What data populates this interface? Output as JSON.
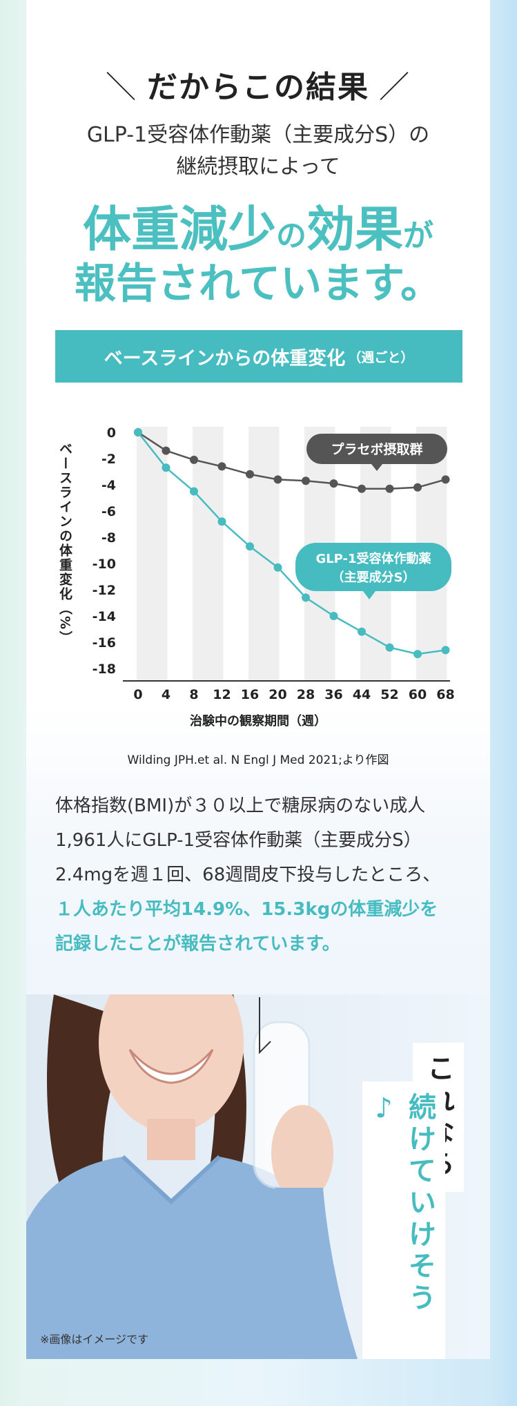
{
  "header": {
    "heading": "だからこの結果",
    "slash_left": "＼",
    "slash_right": "／",
    "sub1": "GLP-1受容体作動薬（主要成分S）の",
    "sub2": "継続摂取によって",
    "big1_a": "体重減少",
    "big1_b": "の",
    "big1_c": "効果",
    "big1_d": "が",
    "big2": "報告されています。"
  },
  "banner": {
    "main": "ベースラインからの体重変化",
    "paren": "（週ごと）"
  },
  "chart_data": {
    "type": "line",
    "ylabel": "ベースラインの体重変化（%）",
    "xlabel": "治験中の観察期間（週）",
    "x_ticks": [
      "0",
      "4",
      "8",
      "12",
      "16",
      "20",
      "28",
      "36",
      "44",
      "52",
      "60",
      "68"
    ],
    "y_ticks": [
      "0",
      "-2",
      "-4",
      "-6",
      "-8",
      "-10",
      "-12",
      "-14",
      "-16",
      "-18"
    ],
    "ylim": [
      -18,
      0
    ],
    "x": [
      0,
      4,
      8,
      12,
      16,
      20,
      28,
      36,
      44,
      52,
      60,
      68
    ],
    "series": [
      {
        "name": "プラセボ摂取群",
        "color": "#555555",
        "values": [
          0,
          -1.4,
          -2.1,
          -2.6,
          -3.2,
          -3.6,
          -3.7,
          -3.9,
          -4.3,
          -4.3,
          -4.2,
          -3.6
        ]
      },
      {
        "name": "GLP-1受容体作動薬（主要成分S）",
        "color": "#47bcc0",
        "values": [
          0,
          -2.7,
          -4.5,
          -6.8,
          -8.7,
          -10.3,
          -12.6,
          -14.0,
          -15.2,
          -16.4,
          -16.9,
          -16.6
        ]
      }
    ],
    "placebo_label": "プラセボ摂取群",
    "drug_label_1": "GLP-1受容体作動薬",
    "drug_label_2": "（主要成分S）",
    "grid": "vertical bands"
  },
  "citation": "Wilding JPH.et al. N Engl J Med 2021;より作図",
  "body": {
    "line1": "体格指数(BMI)が３０以上で糖尿病のない成人",
    "line2": "1,961人にGLP-1受容体作動薬（主要成分S）",
    "line3": "2.4mgを週１回、68週間皮下投与したところ、",
    "line4": "１人あたり平均14.9%、15.3kgの体重減少を",
    "line5": "記録したことが報告されています。"
  },
  "photo": {
    "bubble_1": "これなら",
    "bubble_2": "続けていけそう♪",
    "note": "※画像はイメージです"
  }
}
